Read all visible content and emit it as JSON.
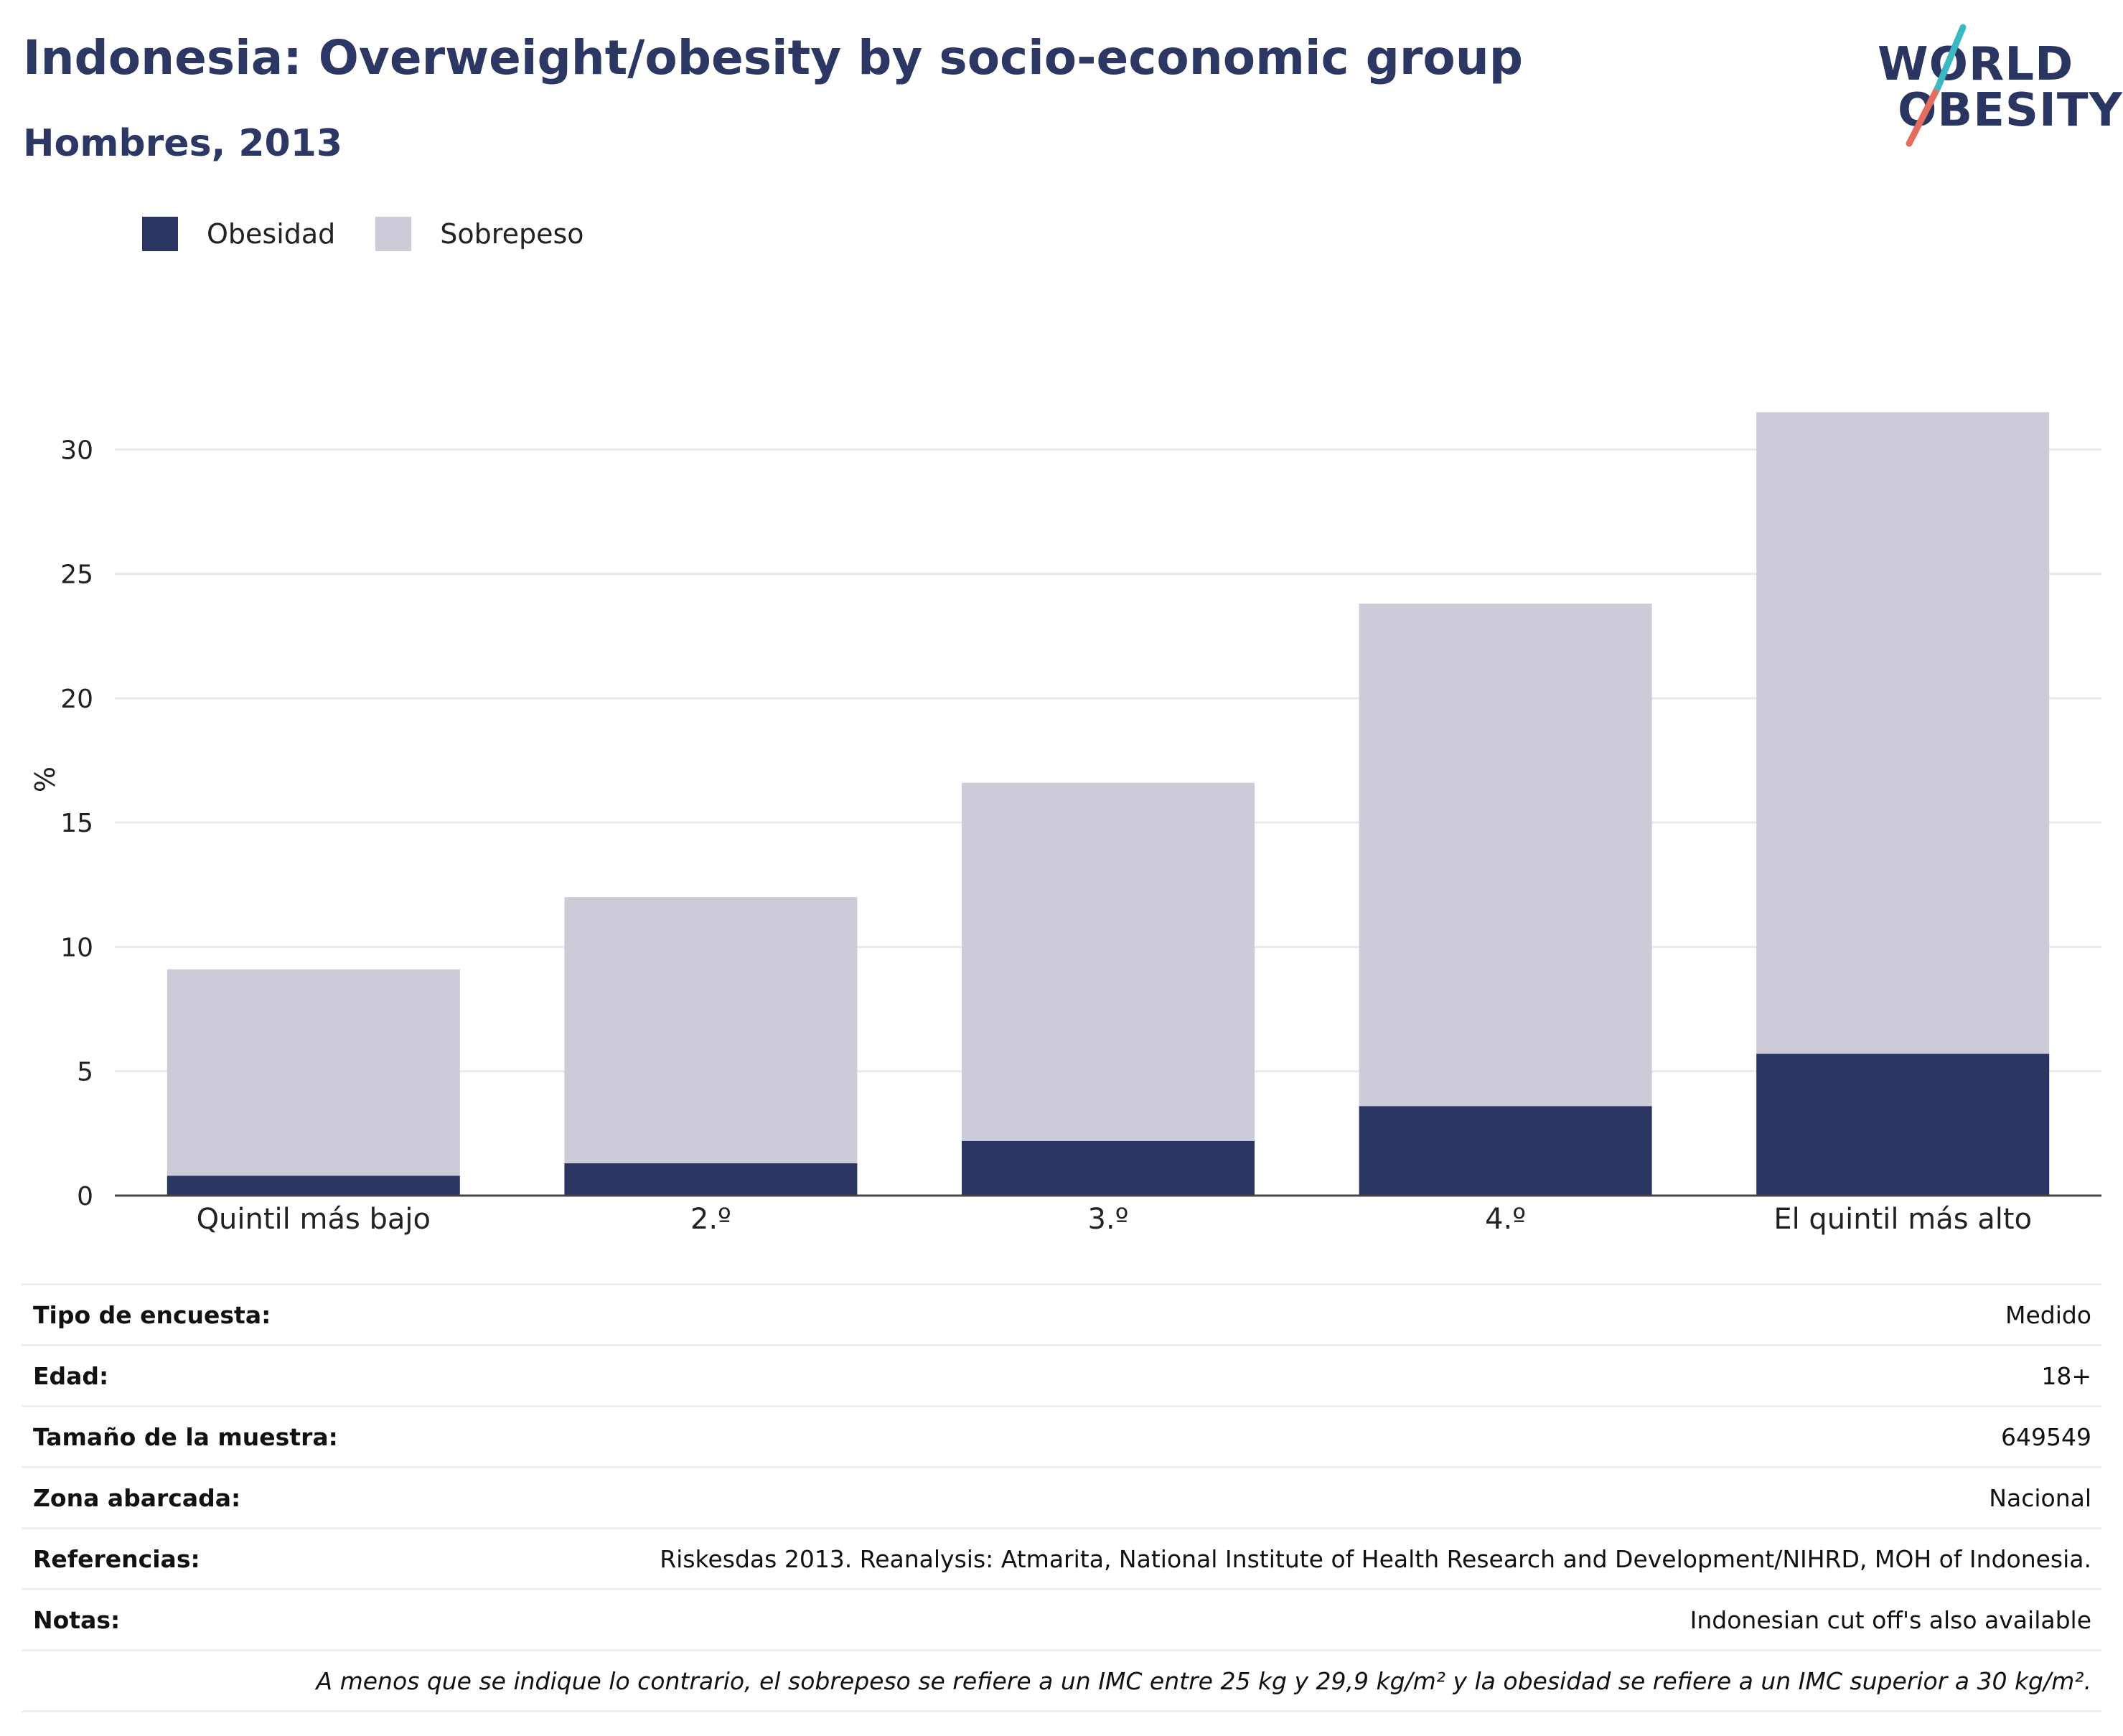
{
  "header": {
    "title": "Indonesia: Overweight/obesity by socio-economic group",
    "subtitle": "Hombres, 2013"
  },
  "logo": {
    "line1": "WORLD",
    "line2": "OBESITY",
    "colors": {
      "teal": "#3bb8c3",
      "coral": "#e46d5e",
      "navy": "#2a3562"
    }
  },
  "colors": {
    "obesity": "#2a3562",
    "overweight": "#cbccd8",
    "grid": "#e8eaf0",
    "axis": "#444444"
  },
  "chart_data": {
    "type": "bar",
    "stacked": true,
    "categories": [
      "Quintil más bajo",
      "2.º",
      "3.º",
      "4.º",
      "El quintil más alto"
    ],
    "series": [
      {
        "name": "Obesidad",
        "values": [
          0.8,
          1.3,
          2.2,
          3.6,
          5.7
        ]
      },
      {
        "name": "Sobrepeso",
        "values": [
          8.3,
          10.7,
          14.4,
          20.2,
          25.8
        ]
      }
    ],
    "ylabel": "%",
    "ylim": [
      0,
      32
    ],
    "yticks": [
      0,
      5,
      10,
      15,
      20,
      25,
      30
    ],
    "grid": true,
    "legend": "top-left"
  },
  "meta": [
    {
      "key": "Tipo de encuesta:",
      "value": "Medido"
    },
    {
      "key": "Edad:",
      "value": "18+"
    },
    {
      "key": "Tamaño de la muestra:",
      "value": "649549"
    },
    {
      "key": "Zona abarcada:",
      "value": "Nacional"
    },
    {
      "key": "Referencias:",
      "value": "Riskesdas 2013. Reanalysis: Atmarita, National Institute of Health Research and Development/NIHRD, MOH of Indonesia."
    },
    {
      "key": "Notas:",
      "value": "Indonesian cut off's also available"
    }
  ],
  "footnote": "A menos que se indique lo contrario, el sobrepeso se refiere a un IMC entre 25 kg y 29,9 kg/m² y la obesidad se refiere a un IMC superior a 30 kg/m²."
}
